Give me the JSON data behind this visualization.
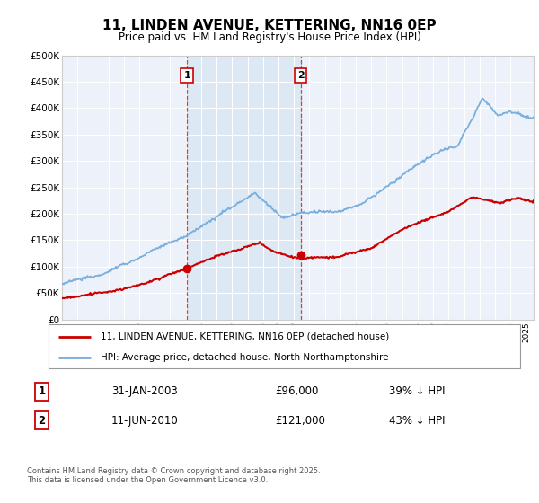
{
  "title": "11, LINDEN AVENUE, KETTERING, NN16 0EP",
  "subtitle": "Price paid vs. HM Land Registry's House Price Index (HPI)",
  "legend_line1": "11, LINDEN AVENUE, KETTERING, NN16 0EP (detached house)",
  "legend_line2": "HPI: Average price, detached house, North Northamptonshire",
  "transaction1_date": "31-JAN-2003",
  "transaction1_price": "£96,000",
  "transaction1_hpi": "39% ↓ HPI",
  "transaction2_date": "11-JUN-2010",
  "transaction2_price": "£121,000",
  "transaction2_hpi": "43% ↓ HPI",
  "footer": "Contains HM Land Registry data © Crown copyright and database right 2025.\nThis data is licensed under the Open Government Licence v3.0.",
  "red_color": "#cc0000",
  "blue_color": "#7aaedc",
  "shade_color": "#dce9f5",
  "plot_bg": "#edf2fa",
  "grid_color": "#ffffff",
  "sale1_x": 2003.08,
  "sale1_y": 96000,
  "sale2_x": 2010.44,
  "sale2_y": 121000,
  "xmin": 1995,
  "xmax": 2025.5,
  "ymin": 0,
  "ymax": 500000,
  "yticks": [
    0,
    50000,
    100000,
    150000,
    200000,
    250000,
    300000,
    350000,
    400000,
    450000,
    500000
  ]
}
